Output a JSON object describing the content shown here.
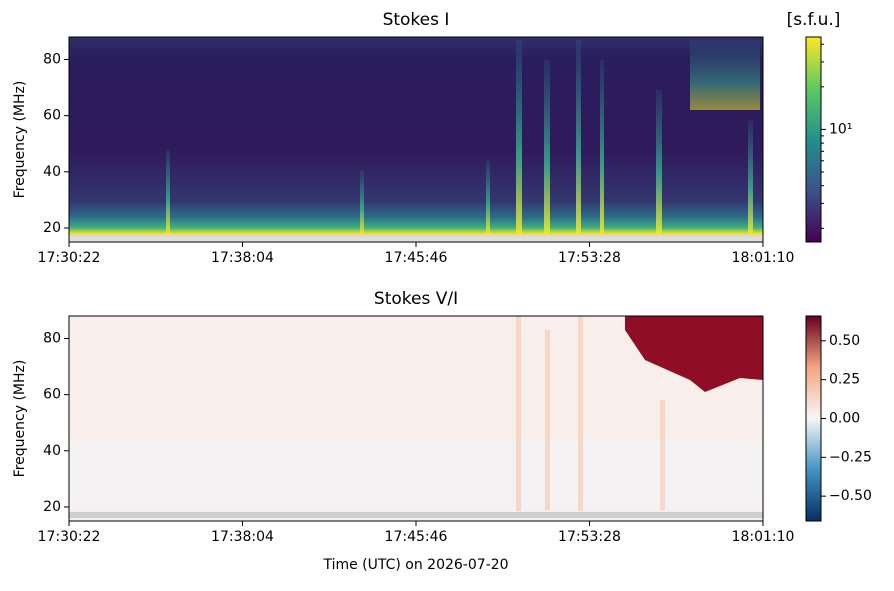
{
  "chart_data": [
    {
      "type": "heatmap",
      "title": "Stokes I",
      "ylabel": "Frequency (MHz)",
      "xlim": [
        "17:30:22",
        "18:01:10"
      ],
      "xticks": [
        "17:30:22",
        "17:38:04",
        "17:45:46",
        "17:53:28",
        "18:01:10"
      ],
      "ylim": [
        15,
        88
      ],
      "yticks": [
        20,
        40,
        60,
        80
      ],
      "colormap": "viridis",
      "colorbar_label": "[s.f.u.]",
      "colorbar_scale": "log",
      "clim": [
        1.6,
        45
      ],
      "cticks": [
        {
          "value": 10,
          "label": "10¹"
        }
      ],
      "cminor_ticks": [
        2,
        3,
        4,
        5,
        6,
        7,
        8,
        9,
        20,
        30,
        40
      ]
    },
    {
      "type": "heatmap",
      "title": "Stokes V/I",
      "ylabel": "Frequency (MHz)",
      "xlabel": "Time (UTC) on 2026-07-20",
      "xlim": [
        "17:30:22",
        "18:01:10"
      ],
      "xticks": [
        "17:30:22",
        "17:38:04",
        "17:45:46",
        "17:53:28",
        "18:01:10"
      ],
      "ylim": [
        15,
        88
      ],
      "yticks": [
        20,
        40,
        60,
        80
      ],
      "colormap": "RdBu_r",
      "colorbar_scale": "linear",
      "clim": [
        -0.66,
        0.66
      ],
      "cticks": [
        {
          "value": -0.5,
          "label": "−0.50"
        },
        {
          "value": -0.25,
          "label": "−0.25"
        },
        {
          "value": 0,
          "label": "0.00"
        },
        {
          "value": 0.25,
          "label": "0.25"
        },
        {
          "value": 0.5,
          "label": "0.50"
        }
      ]
    }
  ]
}
